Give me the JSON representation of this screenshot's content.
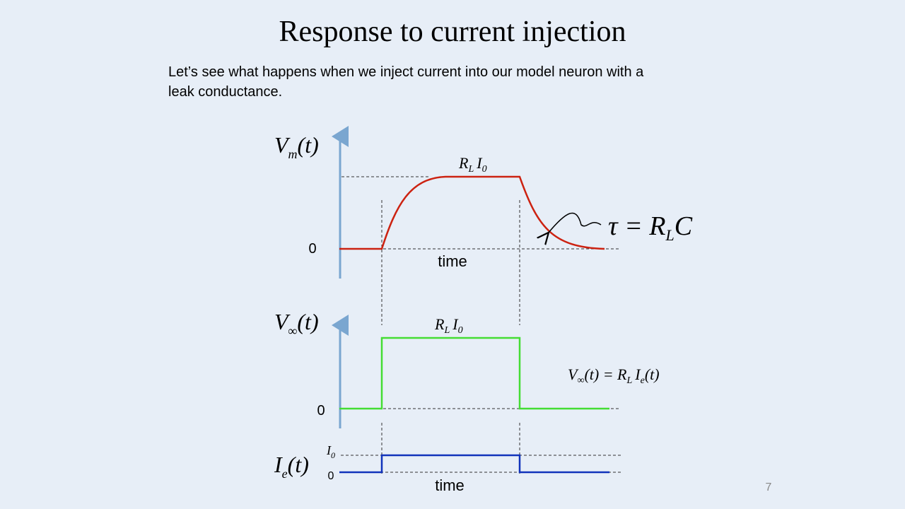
{
  "title": "Response to current injection",
  "body": [
    "Let’s see what happens when we inject current into our model neuron with a",
    "leak conductance."
  ],
  "plots": [
    {
      "y_label": [
        "V",
        "m",
        "(t)"
      ],
      "zero": "0",
      "x_label": "time",
      "level": [
        "R",
        "L",
        "I",
        "0"
      ],
      "note": [
        "τ = R",
        "L",
        "C"
      ]
    },
    {
      "y_label": [
        "V",
        "∞",
        "(t)"
      ],
      "zero": "0",
      "level": [
        "R",
        "L",
        "I",
        "0"
      ],
      "equation": [
        "V",
        "∞",
        "(t) = R",
        "L",
        "I",
        "e",
        "(t)"
      ]
    },
    {
      "y_label": [
        "I",
        "e",
        "(t)"
      ],
      "high": [
        "I",
        "0"
      ],
      "zero": "0",
      "x_label": "time"
    }
  ],
  "page_number": "7"
}
